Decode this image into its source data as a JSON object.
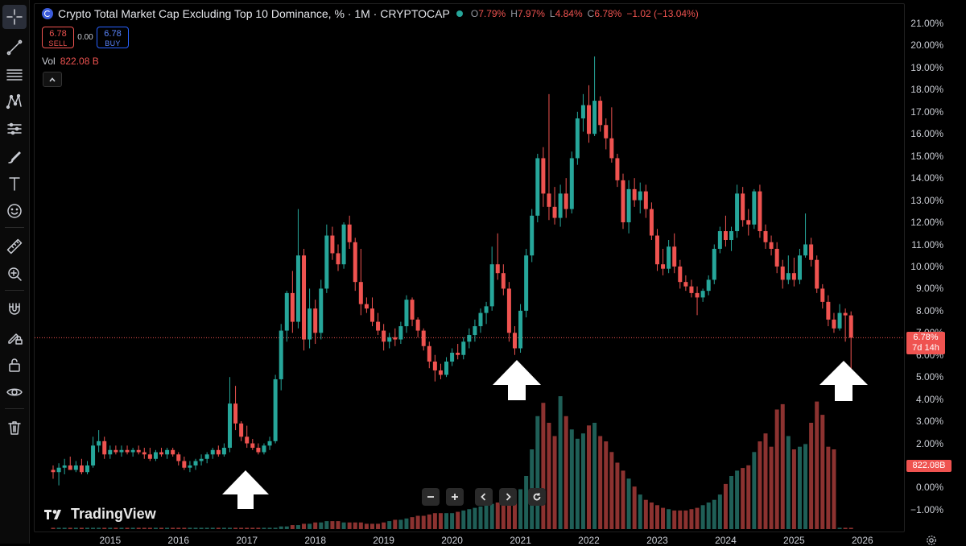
{
  "legend": {
    "title": "Crypto Total Market Cap Excluding Top 10 Dominance, % · 1M · CRYPTOCAP",
    "open_label": "O",
    "open": "7.79%",
    "high_label": "H",
    "high": "7.97%",
    "low_label": "L",
    "low": "4.84%",
    "close_label": "C",
    "close": "6.78%",
    "change": "−1.02 (−13.04%)"
  },
  "trade": {
    "sell_price": "6.78",
    "sell_label": "SELL",
    "spread": "0.00",
    "buy_price": "6.78",
    "buy_label": "BUY"
  },
  "volume": {
    "label": "Vol",
    "value": "822.08 B"
  },
  "price_axis": [
    "21.00%",
    "20.00%",
    "19.00%",
    "18.00%",
    "17.00%",
    "16.00%",
    "15.00%",
    "14.00%",
    "13.00%",
    "12.00%",
    "11.00%",
    "10.00%",
    "9.00%",
    "8.00%",
    "7.00%",
    "6.00%",
    "5.00%",
    "4.00%",
    "3.00%",
    "2.00%",
    "1.00%",
    "0.00%",
    "−1.00%"
  ],
  "current_price_tag": {
    "price": "6.78%",
    "countdown": "7d 14h"
  },
  "volume_tag": "822.08B",
  "time_axis": [
    "2015",
    "2016",
    "2017",
    "2018",
    "2019",
    "2020",
    "2021",
    "2022",
    "2023",
    "2024",
    "2025",
    "2026"
  ],
  "brand": "TradingView",
  "colors": {
    "up": "#26a69a",
    "down": "#ef5350",
    "volume_up": "#1f5f57",
    "volume_down": "#8c3230",
    "background": "#000000"
  },
  "toolbar_icons": [
    "crosshair-icon",
    "trend-line-icon",
    "fib-icon",
    "pattern-icon",
    "prediction-icon",
    "brush-icon",
    "text-icon",
    "emoji-icon",
    "ruler-icon",
    "zoom-icon",
    "magnet-icon",
    "lock-draw-icon",
    "lock-icon",
    "eye-icon",
    "trash-icon"
  ],
  "chart_data": {
    "type": "candlestick",
    "interval": "1M",
    "y_range": [
      -1.5,
      21.5
    ],
    "y_unit": "%",
    "x_range": [
      "2014-03",
      "2026-02"
    ],
    "candles": [
      {
        "t": "2014-03",
        "o": 0.8,
        "h": 1.0,
        "l": 0.4,
        "c": 0.7
      },
      {
        "t": "2014-04",
        "o": 0.7,
        "h": 1.1,
        "l": 0.1,
        "c": 0.9
      },
      {
        "t": "2014-05",
        "o": 0.9,
        "h": 1.3,
        "l": 0.6,
        "c": 1.0
      },
      {
        "t": "2014-06",
        "o": 1.0,
        "h": 1.4,
        "l": 0.8,
        "c": 0.8
      },
      {
        "t": "2014-07",
        "o": 0.8,
        "h": 1.2,
        "l": 0.7,
        "c": 1.0
      },
      {
        "t": "2014-08",
        "o": 1.0,
        "h": 1.3,
        "l": 0.6,
        "c": 0.7
      },
      {
        "t": "2014-09",
        "o": 0.7,
        "h": 1.2,
        "l": 0.6,
        "c": 1.0
      },
      {
        "t": "2014-10",
        "o": 1.0,
        "h": 2.3,
        "l": 0.9,
        "c": 1.9
      },
      {
        "t": "2014-11",
        "o": 1.9,
        "h": 2.6,
        "l": 1.6,
        "c": 2.1
      },
      {
        "t": "2014-12",
        "o": 2.1,
        "h": 2.3,
        "l": 1.3,
        "c": 1.5
      },
      {
        "t": "2015-01",
        "o": 1.5,
        "h": 1.9,
        "l": 1.3,
        "c": 1.7
      },
      {
        "t": "2015-02",
        "o": 1.7,
        "h": 1.9,
        "l": 1.5,
        "c": 1.6
      },
      {
        "t": "2015-03",
        "o": 1.6,
        "h": 1.9,
        "l": 1.4,
        "c": 1.7
      },
      {
        "t": "2015-04",
        "o": 1.7,
        "h": 1.9,
        "l": 1.5,
        "c": 1.6
      },
      {
        "t": "2015-05",
        "o": 1.6,
        "h": 1.8,
        "l": 1.4,
        "c": 1.7
      },
      {
        "t": "2015-06",
        "o": 1.7,
        "h": 1.9,
        "l": 1.5,
        "c": 1.6
      },
      {
        "t": "2015-07",
        "o": 1.6,
        "h": 1.8,
        "l": 1.3,
        "c": 1.5
      },
      {
        "t": "2015-08",
        "o": 1.5,
        "h": 1.8,
        "l": 1.2,
        "c": 1.3
      },
      {
        "t": "2015-09",
        "o": 1.3,
        "h": 1.7,
        "l": 1.2,
        "c": 1.6
      },
      {
        "t": "2015-10",
        "o": 1.6,
        "h": 1.8,
        "l": 1.4,
        "c": 1.5
      },
      {
        "t": "2015-11",
        "o": 1.5,
        "h": 1.8,
        "l": 1.3,
        "c": 1.7
      },
      {
        "t": "2015-12",
        "o": 1.7,
        "h": 1.8,
        "l": 1.4,
        "c": 1.5
      },
      {
        "t": "2016-01",
        "o": 1.5,
        "h": 1.6,
        "l": 1.0,
        "c": 1.2
      },
      {
        "t": "2016-02",
        "o": 1.2,
        "h": 1.4,
        "l": 0.8,
        "c": 0.9
      },
      {
        "t": "2016-03",
        "o": 0.9,
        "h": 1.2,
        "l": 0.7,
        "c": 1.0
      },
      {
        "t": "2016-04",
        "o": 1.0,
        "h": 1.3,
        "l": 0.8,
        "c": 1.2
      },
      {
        "t": "2016-05",
        "o": 1.2,
        "h": 1.5,
        "l": 1.0,
        "c": 1.3
      },
      {
        "t": "2016-06",
        "o": 1.3,
        "h": 1.6,
        "l": 1.1,
        "c": 1.5
      },
      {
        "t": "2016-07",
        "o": 1.5,
        "h": 1.8,
        "l": 1.3,
        "c": 1.7
      },
      {
        "t": "2016-08",
        "o": 1.7,
        "h": 1.9,
        "l": 1.4,
        "c": 1.5
      },
      {
        "t": "2016-09",
        "o": 1.5,
        "h": 2.0,
        "l": 1.4,
        "c": 1.8
      },
      {
        "t": "2016-10",
        "o": 1.8,
        "h": 5.0,
        "l": 1.6,
        "c": 3.8
      },
      {
        "t": "2016-11",
        "o": 3.8,
        "h": 4.6,
        "l": 2.6,
        "c": 2.9
      },
      {
        "t": "2016-12",
        "o": 2.9,
        "h": 3.0,
        "l": 2.1,
        "c": 2.3
      },
      {
        "t": "2017-01",
        "o": 2.3,
        "h": 2.8,
        "l": 1.8,
        "c": 2.0
      },
      {
        "t": "2017-02",
        "o": 2.0,
        "h": 2.2,
        "l": 1.7,
        "c": 1.8
      },
      {
        "t": "2017-03",
        "o": 1.8,
        "h": 2.0,
        "l": 1.5,
        "c": 1.6
      },
      {
        "t": "2017-04",
        "o": 1.6,
        "h": 2.0,
        "l": 1.5,
        "c": 1.9
      },
      {
        "t": "2017-05",
        "o": 1.9,
        "h": 2.3,
        "l": 1.7,
        "c": 2.1
      },
      {
        "t": "2017-06",
        "o": 2.1,
        "h": 5.1,
        "l": 2.0,
        "c": 4.9
      },
      {
        "t": "2017-07",
        "o": 4.9,
        "h": 7.4,
        "l": 4.4,
        "c": 7.1
      },
      {
        "t": "2017-08",
        "o": 7.1,
        "h": 8.9,
        "l": 6.6,
        "c": 8.8
      },
      {
        "t": "2017-09",
        "o": 8.8,
        "h": 9.8,
        "l": 7.0,
        "c": 7.5
      },
      {
        "t": "2017-10",
        "o": 7.5,
        "h": 12.6,
        "l": 7.2,
        "c": 10.5
      },
      {
        "t": "2017-11",
        "o": 10.5,
        "h": 10.8,
        "l": 6.2,
        "c": 6.7
      },
      {
        "t": "2017-12",
        "o": 6.7,
        "h": 9.0,
        "l": 6.3,
        "c": 8.1
      },
      {
        "t": "2018-01",
        "o": 8.1,
        "h": 8.5,
        "l": 6.5,
        "c": 7.0
      },
      {
        "t": "2018-02",
        "o": 7.0,
        "h": 9.4,
        "l": 6.7,
        "c": 9.0
      },
      {
        "t": "2018-03",
        "o": 9.0,
        "h": 11.9,
        "l": 8.8,
        "c": 11.4
      },
      {
        "t": "2018-04",
        "o": 11.4,
        "h": 11.8,
        "l": 10.3,
        "c": 10.6
      },
      {
        "t": "2018-05",
        "o": 10.6,
        "h": 11.0,
        "l": 9.8,
        "c": 10.1
      },
      {
        "t": "2018-06",
        "o": 10.1,
        "h": 12.0,
        "l": 9.9,
        "c": 11.9
      },
      {
        "t": "2018-07",
        "o": 11.9,
        "h": 12.3,
        "l": 10.8,
        "c": 11.1
      },
      {
        "t": "2018-08",
        "o": 11.1,
        "h": 11.3,
        "l": 8.9,
        "c": 9.3
      },
      {
        "t": "2018-09",
        "o": 9.3,
        "h": 10.8,
        "l": 7.8,
        "c": 8.3
      },
      {
        "t": "2018-10",
        "o": 8.3,
        "h": 8.6,
        "l": 7.9,
        "c": 8.1
      },
      {
        "t": "2018-11",
        "o": 8.1,
        "h": 8.6,
        "l": 7.3,
        "c": 7.5
      },
      {
        "t": "2018-12",
        "o": 7.5,
        "h": 7.9,
        "l": 6.9,
        "c": 7.1
      },
      {
        "t": "2019-01",
        "o": 7.1,
        "h": 7.4,
        "l": 6.2,
        "c": 6.6
      },
      {
        "t": "2019-02",
        "o": 6.6,
        "h": 7.0,
        "l": 6.3,
        "c": 6.8
      },
      {
        "t": "2019-03",
        "o": 6.8,
        "h": 7.2,
        "l": 6.4,
        "c": 6.7
      },
      {
        "t": "2019-04",
        "o": 6.7,
        "h": 7.5,
        "l": 6.5,
        "c": 7.3
      },
      {
        "t": "2019-05",
        "o": 7.3,
        "h": 8.7,
        "l": 7.0,
        "c": 8.5
      },
      {
        "t": "2019-06",
        "o": 8.5,
        "h": 8.6,
        "l": 7.3,
        "c": 7.6
      },
      {
        "t": "2019-07",
        "o": 7.6,
        "h": 7.7,
        "l": 6.8,
        "c": 7.1
      },
      {
        "t": "2019-08",
        "o": 7.1,
        "h": 7.2,
        "l": 6.2,
        "c": 6.4
      },
      {
        "t": "2019-09",
        "o": 6.4,
        "h": 6.6,
        "l": 5.4,
        "c": 5.7
      },
      {
        "t": "2019-10",
        "o": 5.7,
        "h": 6.0,
        "l": 4.8,
        "c": 5.3
      },
      {
        "t": "2019-11",
        "o": 5.3,
        "h": 5.6,
        "l": 4.9,
        "c": 5.1
      },
      {
        "t": "2019-12",
        "o": 5.1,
        "h": 5.9,
        "l": 5.0,
        "c": 5.7
      },
      {
        "t": "2020-01",
        "o": 5.7,
        "h": 6.3,
        "l": 5.5,
        "c": 6.1
      },
      {
        "t": "2020-02",
        "o": 6.1,
        "h": 6.5,
        "l": 5.8,
        "c": 6.0
      },
      {
        "t": "2020-03",
        "o": 6.0,
        "h": 6.8,
        "l": 5.8,
        "c": 6.6
      },
      {
        "t": "2020-04",
        "o": 6.6,
        "h": 7.2,
        "l": 6.3,
        "c": 6.9
      },
      {
        "t": "2020-05",
        "o": 6.9,
        "h": 7.6,
        "l": 6.6,
        "c": 7.3
      },
      {
        "t": "2020-06",
        "o": 7.3,
        "h": 8.1,
        "l": 7.0,
        "c": 7.9
      },
      {
        "t": "2020-07",
        "o": 7.9,
        "h": 8.4,
        "l": 7.4,
        "c": 8.2
      },
      {
        "t": "2020-08",
        "o": 8.2,
        "h": 10.9,
        "l": 8.0,
        "c": 10.1
      },
      {
        "t": "2020-09",
        "o": 10.1,
        "h": 11.5,
        "l": 9.4,
        "c": 9.7
      },
      {
        "t": "2020-10",
        "o": 9.7,
        "h": 10.1,
        "l": 8.7,
        "c": 9.0
      },
      {
        "t": "2020-11",
        "o": 9.0,
        "h": 9.3,
        "l": 6.6,
        "c": 7.0
      },
      {
        "t": "2020-12",
        "o": 7.0,
        "h": 7.3,
        "l": 6.0,
        "c": 6.3
      },
      {
        "t": "2021-01",
        "o": 6.3,
        "h": 8.3,
        "l": 6.1,
        "c": 8.0
      },
      {
        "t": "2021-02",
        "o": 8.0,
        "h": 10.8,
        "l": 7.7,
        "c": 10.5
      },
      {
        "t": "2021-03",
        "o": 10.5,
        "h": 12.6,
        "l": 10.2,
        "c": 12.3
      },
      {
        "t": "2021-04",
        "o": 12.3,
        "h": 15.1,
        "l": 12.0,
        "c": 14.9
      },
      {
        "t": "2021-05",
        "o": 14.9,
        "h": 15.4,
        "l": 12.7,
        "c": 13.3
      },
      {
        "t": "2021-06",
        "o": 13.3,
        "h": 17.8,
        "l": 12.1,
        "c": 12.7
      },
      {
        "t": "2021-07",
        "o": 12.7,
        "h": 13.6,
        "l": 11.9,
        "c": 12.2
      },
      {
        "t": "2021-08",
        "o": 12.2,
        "h": 13.7,
        "l": 11.8,
        "c": 13.3
      },
      {
        "t": "2021-09",
        "o": 13.3,
        "h": 14.0,
        "l": 12.2,
        "c": 12.6
      },
      {
        "t": "2021-10",
        "o": 12.6,
        "h": 15.2,
        "l": 12.4,
        "c": 14.9
      },
      {
        "t": "2021-11",
        "o": 14.9,
        "h": 17.0,
        "l": 14.6,
        "c": 16.7
      },
      {
        "t": "2021-12",
        "o": 16.7,
        "h": 17.8,
        "l": 16.1,
        "c": 17.3
      },
      {
        "t": "2022-01",
        "o": 17.3,
        "h": 18.2,
        "l": 15.6,
        "c": 16.0
      },
      {
        "t": "2022-02",
        "o": 16.0,
        "h": 19.5,
        "l": 15.9,
        "c": 17.5
      },
      {
        "t": "2022-03",
        "o": 17.5,
        "h": 17.7,
        "l": 16.1,
        "c": 16.4
      },
      {
        "t": "2022-04",
        "o": 16.4,
        "h": 16.7,
        "l": 15.3,
        "c": 15.8
      },
      {
        "t": "2022-05",
        "o": 15.8,
        "h": 17.2,
        "l": 14.7,
        "c": 14.9
      },
      {
        "t": "2022-06",
        "o": 14.9,
        "h": 15.1,
        "l": 13.6,
        "c": 13.9
      },
      {
        "t": "2022-07",
        "o": 13.9,
        "h": 14.2,
        "l": 11.7,
        "c": 12.0
      },
      {
        "t": "2022-08",
        "o": 12.0,
        "h": 13.9,
        "l": 11.5,
        "c": 13.5
      },
      {
        "t": "2022-09",
        "o": 13.5,
        "h": 14.0,
        "l": 12.7,
        "c": 13.0
      },
      {
        "t": "2022-10",
        "o": 13.0,
        "h": 13.8,
        "l": 12.4,
        "c": 13.4
      },
      {
        "t": "2022-11",
        "o": 13.4,
        "h": 13.7,
        "l": 12.2,
        "c": 12.6
      },
      {
        "t": "2022-12",
        "o": 12.6,
        "h": 12.9,
        "l": 11.2,
        "c": 11.4
      },
      {
        "t": "2023-01",
        "o": 11.4,
        "h": 11.7,
        "l": 9.8,
        "c": 10.1
      },
      {
        "t": "2023-02",
        "o": 10.1,
        "h": 10.8,
        "l": 9.6,
        "c": 9.9
      },
      {
        "t": "2023-03",
        "o": 9.9,
        "h": 11.2,
        "l": 9.7,
        "c": 10.9
      },
      {
        "t": "2023-04",
        "o": 10.9,
        "h": 11.5,
        "l": 9.7,
        "c": 10.0
      },
      {
        "t": "2023-05",
        "o": 10.0,
        "h": 10.3,
        "l": 9.0,
        "c": 9.3
      },
      {
        "t": "2023-06",
        "o": 9.3,
        "h": 9.6,
        "l": 8.9,
        "c": 9.1
      },
      {
        "t": "2023-07",
        "o": 9.1,
        "h": 9.4,
        "l": 8.6,
        "c": 8.8
      },
      {
        "t": "2023-08",
        "o": 8.8,
        "h": 9.1,
        "l": 7.8,
        "c": 8.6
      },
      {
        "t": "2023-09",
        "o": 8.6,
        "h": 9.0,
        "l": 8.4,
        "c": 8.9
      },
      {
        "t": "2023-10",
        "o": 8.9,
        "h": 9.6,
        "l": 8.7,
        "c": 9.4
      },
      {
        "t": "2023-11",
        "o": 9.4,
        "h": 11.0,
        "l": 9.2,
        "c": 10.8
      },
      {
        "t": "2023-12",
        "o": 10.8,
        "h": 11.8,
        "l": 10.6,
        "c": 11.6
      },
      {
        "t": "2024-01",
        "o": 11.6,
        "h": 12.3,
        "l": 10.9,
        "c": 11.2
      },
      {
        "t": "2024-02",
        "o": 11.2,
        "h": 11.8,
        "l": 10.7,
        "c": 11.6
      },
      {
        "t": "2024-03",
        "o": 11.6,
        "h": 13.7,
        "l": 11.3,
        "c": 13.3
      },
      {
        "t": "2024-04",
        "o": 13.3,
        "h": 13.6,
        "l": 11.8,
        "c": 12.1
      },
      {
        "t": "2024-05",
        "o": 12.1,
        "h": 12.6,
        "l": 11.4,
        "c": 11.9
      },
      {
        "t": "2024-06",
        "o": 11.9,
        "h": 13.5,
        "l": 11.7,
        "c": 13.4
      },
      {
        "t": "2024-07",
        "o": 13.4,
        "h": 13.7,
        "l": 11.3,
        "c": 11.6
      },
      {
        "t": "2024-08",
        "o": 11.6,
        "h": 11.9,
        "l": 10.8,
        "c": 11.1
      },
      {
        "t": "2024-09",
        "o": 11.1,
        "h": 11.4,
        "l": 10.5,
        "c": 10.8
      },
      {
        "t": "2024-10",
        "o": 10.8,
        "h": 11.1,
        "l": 9.7,
        "c": 10.0
      },
      {
        "t": "2024-11",
        "o": 10.0,
        "h": 10.3,
        "l": 9.0,
        "c": 9.4
      },
      {
        "t": "2024-12",
        "o": 9.4,
        "h": 10.5,
        "l": 9.2,
        "c": 9.7
      },
      {
        "t": "2025-01",
        "o": 9.7,
        "h": 10.4,
        "l": 9.1,
        "c": 9.4
      },
      {
        "t": "2025-02",
        "o": 9.4,
        "h": 10.8,
        "l": 9.2,
        "c": 10.5
      },
      {
        "t": "2025-03",
        "o": 10.5,
        "h": 12.4,
        "l": 10.4,
        "c": 11.0
      },
      {
        "t": "2025-04",
        "o": 11.0,
        "h": 11.3,
        "l": 10.0,
        "c": 10.3
      },
      {
        "t": "2025-05",
        "o": 10.3,
        "h": 10.5,
        "l": 8.8,
        "c": 9.0
      },
      {
        "t": "2025-06",
        "o": 9.0,
        "h": 9.2,
        "l": 8.1,
        "c": 8.4
      },
      {
        "t": "2025-07",
        "o": 8.4,
        "h": 8.7,
        "l": 7.3,
        "c": 7.6
      },
      {
        "t": "2025-08",
        "o": 7.6,
        "h": 7.9,
        "l": 7.0,
        "c": 7.2
      },
      {
        "t": "2025-09",
        "o": 7.2,
        "h": 8.3,
        "l": 7.1,
        "c": 7.9
      },
      {
        "t": "2025-10",
        "o": 7.9,
        "h": 8.1,
        "l": 6.6,
        "c": 7.79
      },
      {
        "t": "2025-11",
        "o": 7.79,
        "h": 7.97,
        "l": 4.84,
        "c": 6.78
      }
    ],
    "volume_relative": [
      1,
      1,
      1,
      1,
      1,
      1,
      1,
      1,
      1,
      1,
      1,
      1,
      1,
      1,
      1,
      1,
      1,
      1,
      1,
      1,
      1,
      1,
      1,
      1,
      1,
      1,
      1,
      1,
      1,
      1,
      1,
      1,
      1,
      1,
      1,
      1,
      1,
      1,
      1,
      1,
      2,
      2,
      3,
      3,
      4,
      4,
      5,
      5,
      6,
      6,
      6,
      5,
      5,
      5,
      5,
      4,
      4,
      4,
      5,
      6,
      7,
      7,
      8,
      9,
      10,
      10,
      11,
      12,
      12,
      12,
      12,
      13,
      14,
      15,
      16,
      17,
      18,
      19,
      20,
      22,
      24,
      26,
      30,
      40,
      60,
      85,
      95,
      80,
      70,
      100,
      85,
      75,
      68,
      72,
      78,
      80,
      70,
      66,
      58,
      50,
      44,
      38,
      32,
      26,
      22,
      20,
      18,
      16,
      15,
      14,
      14,
      14,
      15,
      16,
      18,
      20,
      22,
      26,
      34,
      40,
      44,
      46,
      48,
      58,
      66,
      72,
      62,
      90,
      94,
      70,
      60,
      62,
      64,
      80,
      96,
      86,
      62,
      60
    ]
  }
}
